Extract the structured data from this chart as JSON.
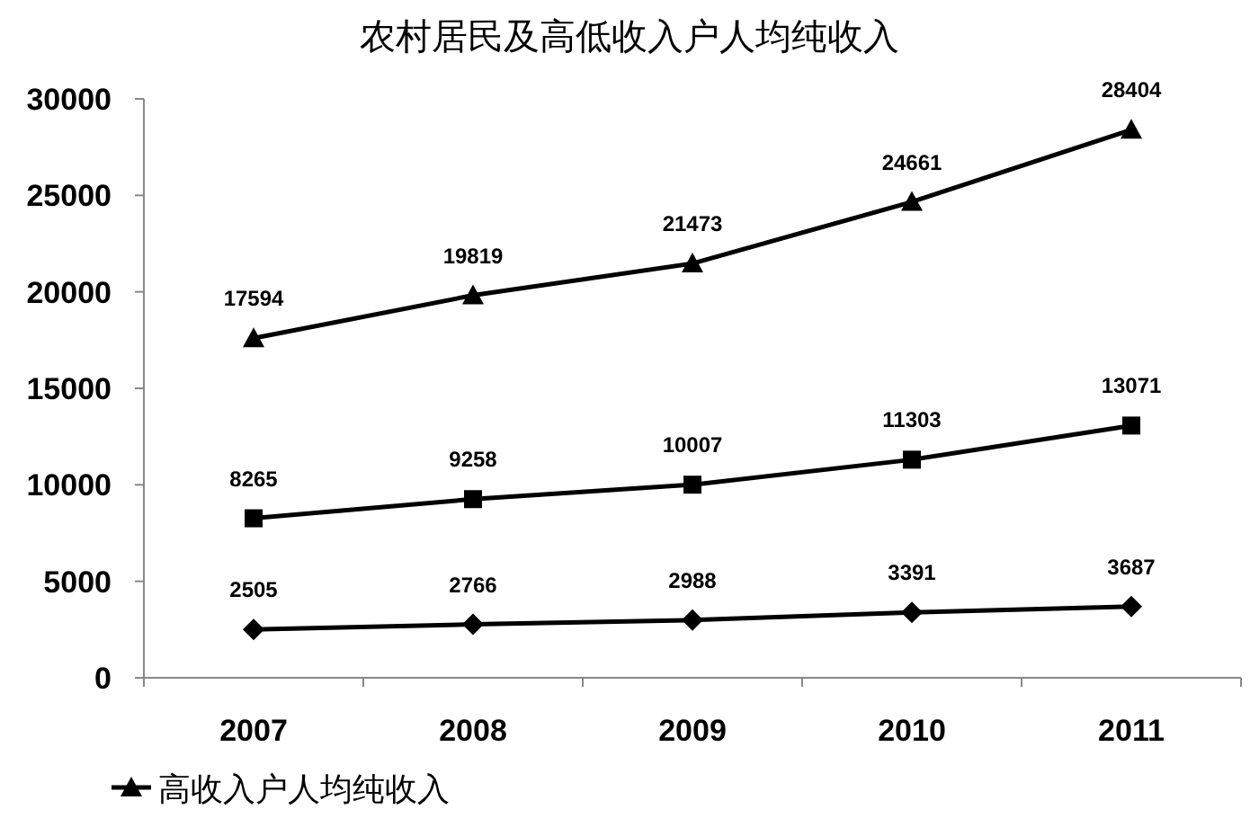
{
  "chart_data": {
    "type": "line",
    "title": "农村居民及高低收入户人均纯收入",
    "categories": [
      "2007",
      "2008",
      "2009",
      "2010",
      "2011"
    ],
    "series": [
      {
        "name": "高收入户人均纯收入",
        "color": "#000000",
        "marker": "triangle",
        "values": [
          17594,
          19819,
          21473,
          24661,
          28404
        ]
      },
      {
        "color": "#000000",
        "marker": "square",
        "values": [
          8265,
          9258,
          10007,
          11303,
          13071
        ]
      },
      {
        "color": "#000000",
        "marker": "diamond",
        "values": [
          2505,
          2766,
          2988,
          3391,
          3687
        ]
      }
    ],
    "ylim": [
      0,
      30000
    ],
    "yticks": [
      0,
      5000,
      10000,
      15000,
      20000,
      25000,
      30000
    ],
    "data_labels": true,
    "grid": false,
    "legend": "bottom",
    "line_style": "solid"
  }
}
